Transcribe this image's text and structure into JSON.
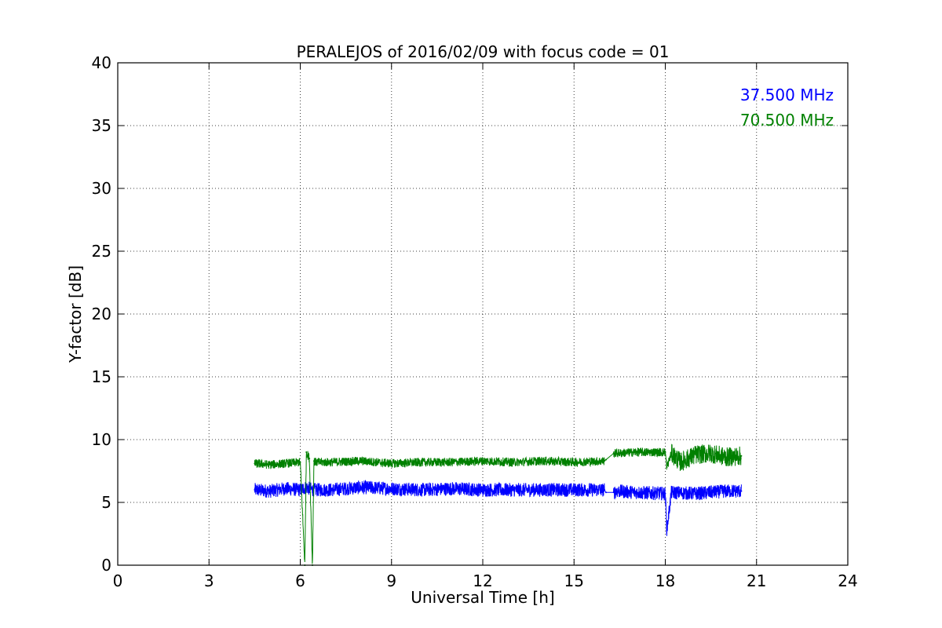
{
  "chart_data": {
    "type": "line",
    "title": "PERALEJOS of 2016/02/09 with focus code = 01",
    "xlabel": "Universal Time [h]",
    "ylabel": "Y-factor [dB]",
    "xlim": [
      0,
      24
    ],
    "ylim": [
      0,
      40
    ],
    "xticks": [
      0,
      3,
      6,
      9,
      12,
      15,
      18,
      21,
      24
    ],
    "yticks": [
      0,
      5,
      10,
      15,
      20,
      25,
      30,
      35,
      40
    ],
    "grid": true,
    "legend_position": "top-right",
    "series": [
      {
        "name": "37.500 MHz",
        "color": "#0000ff",
        "x": [
          4.5,
          5.0,
          5.5,
          6.0,
          6.2,
          6.4,
          7.0,
          8.0,
          9.0,
          10.0,
          11.0,
          12.0,
          13.0,
          14.0,
          15.0,
          16.0,
          16.05,
          16.3,
          16.4,
          17.0,
          18.0,
          18.05,
          18.2,
          19.0,
          19.5,
          20.0,
          20.5
        ],
        "y": [
          6.0,
          5.9,
          6.1,
          6.0,
          6.2,
          6.0,
          6.0,
          6.2,
          6.1,
          6.0,
          6.1,
          6.0,
          6.0,
          6.0,
          6.0,
          6.0,
          5.8,
          5.8,
          5.9,
          5.8,
          5.7,
          2.8,
          5.8,
          5.7,
          5.8,
          5.9,
          5.9
        ],
        "noise": 0.55
      },
      {
        "name": "70.500 MHz",
        "color": "#008000",
        "x": [
          4.5,
          5.0,
          5.5,
          6.0,
          6.15,
          6.2,
          6.3,
          6.4,
          6.45,
          6.5,
          7.0,
          8.0,
          9.0,
          10.0,
          11.0,
          12.0,
          13.0,
          14.0,
          15.0,
          16.0,
          16.05,
          16.3,
          17.0,
          18.0,
          18.05,
          18.2,
          18.5,
          19.0,
          19.5,
          20.0,
          20.5
        ],
        "y": [
          8.1,
          8.0,
          8.1,
          8.2,
          0.0,
          9.0,
          8.5,
          0.0,
          8.3,
          8.2,
          8.2,
          8.3,
          8.1,
          8.2,
          8.2,
          8.3,
          8.2,
          8.3,
          8.2,
          8.3,
          8.4,
          8.9,
          9.0,
          9.0,
          7.8,
          8.9,
          8.2,
          8.8,
          8.9,
          8.6,
          8.7
        ],
        "noise": 0.35
      }
    ]
  }
}
